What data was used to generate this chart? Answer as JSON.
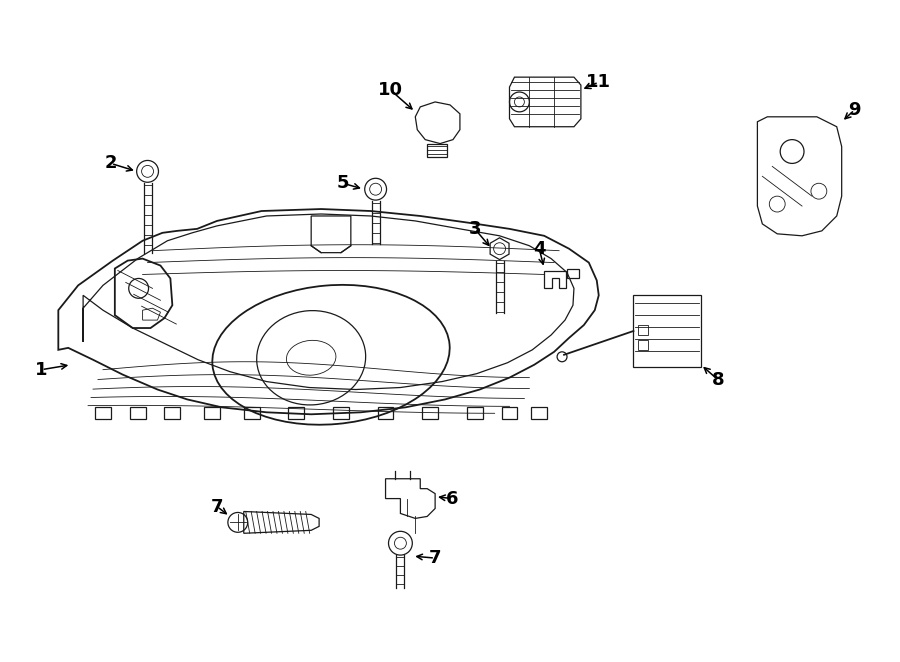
{
  "background_color": "#ffffff",
  "line_color": "#1a1a1a",
  "label_color": "#000000",
  "figsize": [
    9.0,
    6.62
  ],
  "dpi": 100,
  "lw_main": 1.8,
  "lw_med": 1.3,
  "lw_thin": 0.9,
  "lw_xtra": 0.6
}
